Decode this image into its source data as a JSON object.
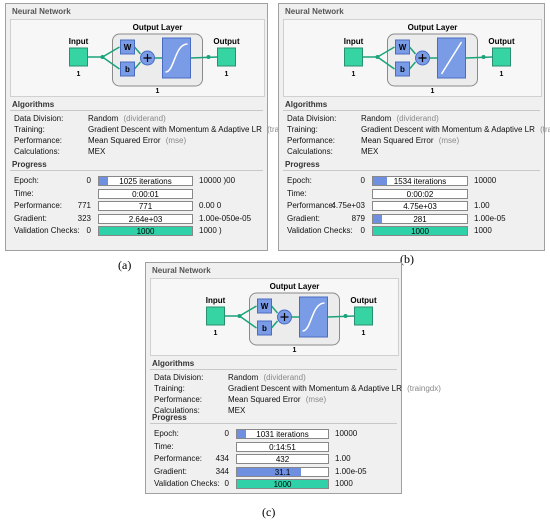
{
  "panels": [
    {
      "caption": "(a)",
      "title": "Neural Network",
      "diagram": {
        "input": "Input",
        "layer": "Output Layer",
        "w": "W",
        "b": "b",
        "output": "Output",
        "input_size": "1",
        "layer_size": "1",
        "output_size": "1"
      },
      "algorithms": {
        "heading": "Algorithms",
        "rows": [
          {
            "label": "Data Division:",
            "value": "Random",
            "hint": "(dividerand)"
          },
          {
            "label": "Training:",
            "value": "Gradient Descent with Momentum & Adaptive LR",
            "hint": "(traingdx)"
          },
          {
            "label": "Performance:",
            "value": "Mean Squared Error",
            "hint": "(mse)"
          },
          {
            "label": "Calculations:",
            "value": "MEX"
          }
        ]
      },
      "progress": {
        "heading": "Progress",
        "rows": [
          {
            "label": "Epoch:",
            "start": "0",
            "current": "1025 iterations",
            "end": "10000  )00"
          },
          {
            "label": "Time:",
            "current": "0:00:01"
          },
          {
            "label": "Performance:",
            "start": "771",
            "current": "771",
            "end": "0.00  0"
          },
          {
            "label": "Gradient:",
            "start": "323",
            "current": "2.64e+03",
            "end": "1.00e-050e-05"
          },
          {
            "label": "Validation Checks:",
            "start": "0",
            "current": "1000",
            "end": "1000  )"
          }
        ]
      }
    },
    {
      "caption": "(b)",
      "title": "Neural Network",
      "diagram": {
        "input": "Input",
        "layer": "Output Layer",
        "w": "W",
        "b": "b",
        "output": "Output",
        "input_size": "1",
        "layer_size": "1",
        "output_size": "1"
      },
      "algorithms": {
        "heading": "Algorithms",
        "rows": [
          {
            "label": "Data Division:",
            "value": "Random",
            "hint": "(dividerand)"
          },
          {
            "label": "Training:",
            "value": "Gradient Descent with Momentum & Adaptive LR",
            "hint": "(traingdx)"
          },
          {
            "label": "Performance:",
            "value": "Mean Squared Error",
            "hint": "(mse)"
          },
          {
            "label": "Calculations:",
            "value": "MEX"
          }
        ]
      },
      "progress": {
        "heading": "Progress",
        "rows": [
          {
            "label": "Epoch:",
            "start": "0",
            "current": "1534 iterations",
            "end": "10000"
          },
          {
            "label": "Time:",
            "current": "0:00:02"
          },
          {
            "label": "Performance:",
            "start": "4.75e+03",
            "current": "4.75e+03",
            "end": "1.00"
          },
          {
            "label": "Gradient:",
            "start": "879",
            "current": "281",
            "end": "1.00e-05"
          },
          {
            "label": "Validation Checks:",
            "start": "0",
            "current": "1000",
            "end": "1000"
          }
        ]
      }
    },
    {
      "caption": "(c)",
      "title": "Neural Network",
      "diagram": {
        "input": "Input",
        "layer": "Output Layer",
        "w": "W",
        "b": "b",
        "output": "Output",
        "input_size": "1",
        "layer_size": "1",
        "output_size": "1"
      },
      "algorithms": {
        "heading": "Algorithms",
        "rows": [
          {
            "label": "Data Division:",
            "value": "Random",
            "hint": "(dividerand)"
          },
          {
            "label": "Training:",
            "value": "Gradient Descent with Momentum & Adaptive LR",
            "hint": "(traingdx)"
          },
          {
            "label": "Performance:",
            "value": "Mean Squared Error",
            "hint": "(mse)"
          },
          {
            "label": "Calculations:",
            "value": "MEX"
          }
        ]
      },
      "progress": {
        "heading": "Progress",
        "rows": [
          {
            "label": "Epoch:",
            "start": "0",
            "current": "1031 iterations",
            "end": "10000"
          },
          {
            "label": "Time:",
            "current": "0:14:51"
          },
          {
            "label": "Performance:",
            "start": "434",
            "current": "432",
            "end": "1.00"
          },
          {
            "label": "Gradient:",
            "start": "344",
            "current": "31.1",
            "end": "1.00e-05"
          },
          {
            "label": "Validation Checks:",
            "start": "0",
            "current": "1000",
            "end": "1000"
          }
        ]
      }
    }
  ]
}
